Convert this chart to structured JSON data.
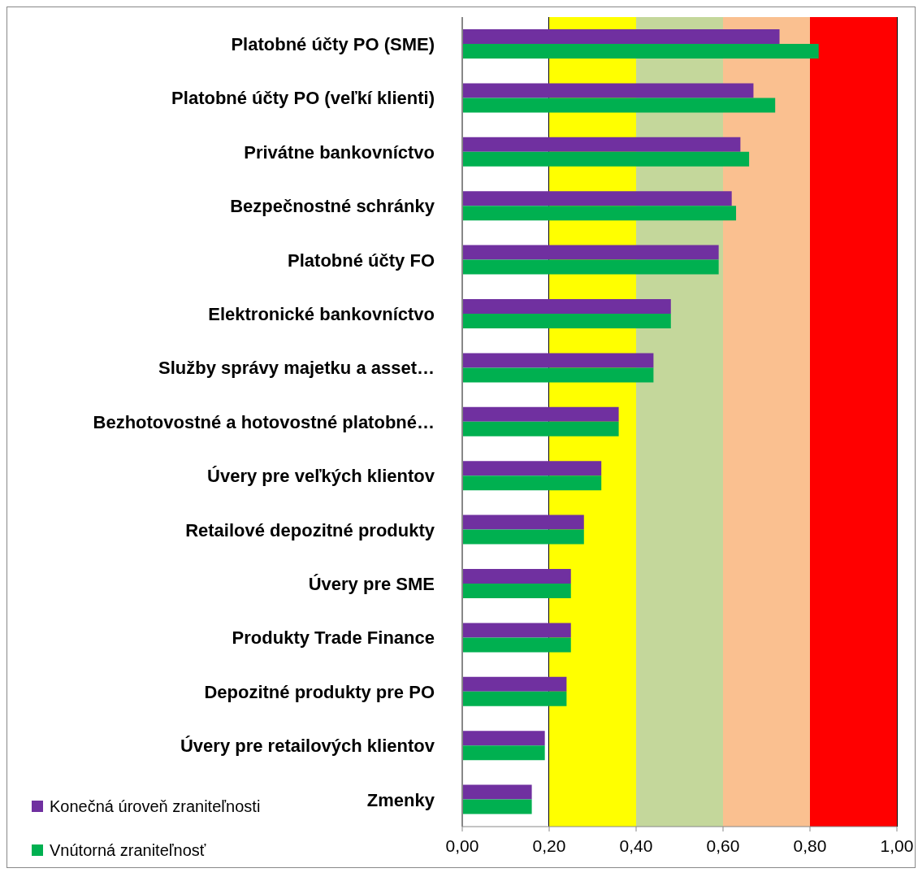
{
  "chart_data": {
    "type": "bar",
    "orientation": "horizontal",
    "categories": [
      "Platobné účty PO (SME)",
      "Platobné účty PO (veľkí klienti)",
      "Privátne bankovníctvo",
      "Bezpečnostné schránky",
      "Platobné účty FO",
      "Elektronické bankovníctvo",
      "Služby správy majetku a asset…",
      "Bezhotovostné a hotovostné platobné…",
      "Úvery pre veľkých klientov ",
      "Retailové depozitné produkty",
      "Úvery pre SME",
      "Produkty Trade Finance",
      "Depozitné produkty pre PO",
      "Úvery pre retailových klientov",
      "Zmenky"
    ],
    "series": [
      {
        "name": "Konečná úroveň zraniteľnosti",
        "color": "#7030a0",
        "values": [
          0.73,
          0.67,
          0.64,
          0.62,
          0.59,
          0.48,
          0.44,
          0.36,
          0.32,
          0.28,
          0.25,
          0.25,
          0.24,
          0.19,
          0.16
        ]
      },
      {
        "name": "Vnútorná zraniteľnosť",
        "color": "#00b050",
        "values": [
          0.82,
          0.72,
          0.66,
          0.63,
          0.59,
          0.48,
          0.44,
          0.36,
          0.32,
          0.28,
          0.25,
          0.25,
          0.24,
          0.19,
          0.16
        ]
      }
    ],
    "xlim": [
      0,
      1
    ],
    "xticks": [
      {
        "value": 0,
        "label": "0,00"
      },
      {
        "value": 0.2,
        "label": "0,20"
      },
      {
        "value": 0.4,
        "label": "0,40"
      },
      {
        "value": 0.6,
        "label": "0,60"
      },
      {
        "value": 0.8,
        "label": "0,80"
      },
      {
        "value": 1,
        "label": "1,00"
      }
    ],
    "grid": "x",
    "legend": "bottom left",
    "bands": [
      {
        "axis": "x",
        "from": 0.2,
        "to": 0.4,
        "color": "#ffff00"
      },
      {
        "axis": "x",
        "from": 0.4,
        "to": 0.6,
        "color": "#c4d79b"
      },
      {
        "axis": "x",
        "from": 0.6,
        "to": 0.8,
        "color": "#fac090"
      },
      {
        "axis": "x",
        "from": 0.8,
        "to": 1,
        "color": "#ff0000"
      }
    ]
  }
}
